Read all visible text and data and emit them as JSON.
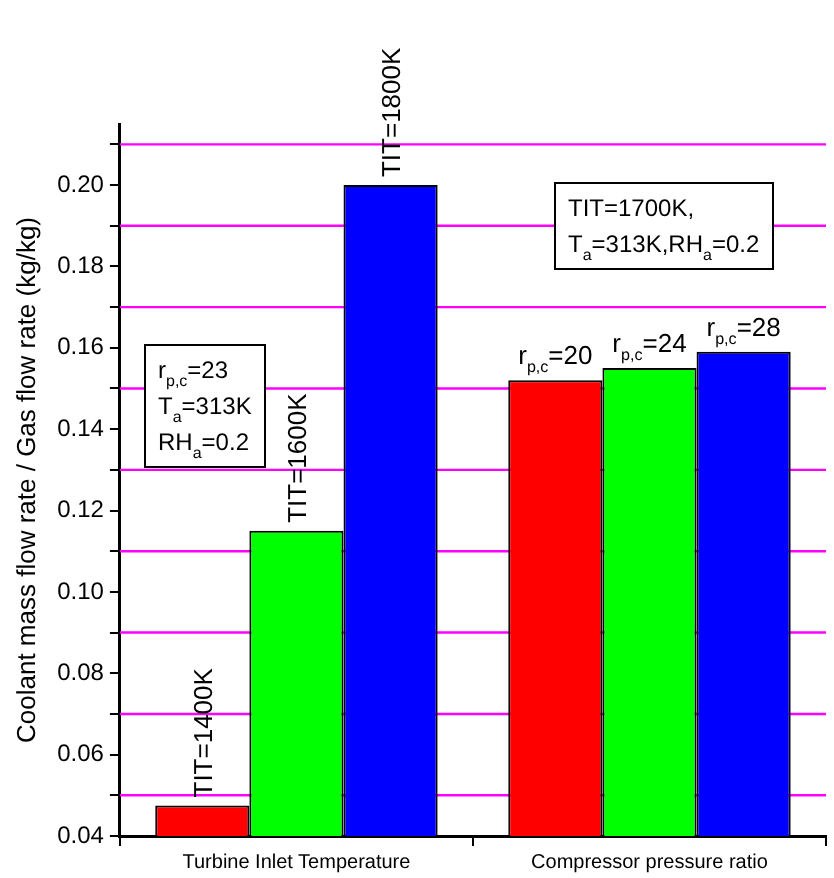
{
  "chart_data": {
    "type": "bar",
    "ylabel": "Coolant mass flow rate / Gas flow rate (kg/kg)",
    "categories": [
      "Turbine Inlet Temperature",
      "Compressor pressure ratio"
    ],
    "series": [
      {
        "color": "#ff0000",
        "values": [
          0.0475,
          0.152
        ]
      },
      {
        "color": "#00ff00",
        "values": [
          0.115,
          0.155
        ]
      },
      {
        "color": "#0000ff",
        "values": [
          0.2,
          0.159
        ]
      }
    ],
    "ylim": [
      0.04,
      0.215
    ],
    "yticks": [
      {
        "value": 0.04,
        "label": "0.04"
      },
      {
        "value": 0.05,
        "label": null
      },
      {
        "value": 0.06,
        "label": "0.06"
      },
      {
        "value": 0.07,
        "label": null
      },
      {
        "value": 0.08,
        "label": "0.08"
      },
      {
        "value": 0.09,
        "label": null
      },
      {
        "value": 0.1,
        "label": "0.10"
      },
      {
        "value": 0.11,
        "label": null
      },
      {
        "value": 0.12,
        "label": "0.12"
      },
      {
        "value": 0.13,
        "label": null
      },
      {
        "value": 0.14,
        "label": "0.14"
      },
      {
        "value": 0.15,
        "label": null
      },
      {
        "value": 0.16,
        "label": "0.16"
      },
      {
        "value": 0.17,
        "label": null
      },
      {
        "value": 0.18,
        "label": "0.18"
      },
      {
        "value": 0.19,
        "label": null
      },
      {
        "value": 0.2,
        "label": "0.20"
      },
      {
        "value": 0.21,
        "label": null
      }
    ],
    "ref_lines": [
      {
        "axis": "y",
        "value": 0.05,
        "color": "#ff00ff"
      },
      {
        "axis": "y",
        "value": 0.07,
        "color": "#ff00ff"
      },
      {
        "axis": "y",
        "value": 0.09,
        "color": "#ff00ff"
      },
      {
        "axis": "y",
        "value": 0.11,
        "color": "#ff00ff"
      },
      {
        "axis": "y",
        "value": 0.13,
        "color": "#ff00ff"
      },
      {
        "axis": "y",
        "value": 0.15,
        "color": "#ff00ff"
      },
      {
        "axis": "y",
        "value": 0.17,
        "color": "#ff00ff"
      },
      {
        "axis": "y",
        "value": 0.19,
        "color": "#ff00ff"
      },
      {
        "axis": "y",
        "value": 0.21,
        "color": "#ff00ff"
      }
    ],
    "annotations": [
      "TIT=1400K",
      "TIT=1600K",
      "TIT=1800K",
      "r$_{p,c}$=20",
      "r$_{p,c}$=24",
      "r$_{p,c}$=28",
      "r$_{p,c}$=23\nT$_{a}$=313K\nRH$_{a}$=0.2",
      "TIT=1700K,\nT$_{a}$=313K,RH$_{a}$=0.2"
    ],
    "grid": false,
    "legend": false
  }
}
